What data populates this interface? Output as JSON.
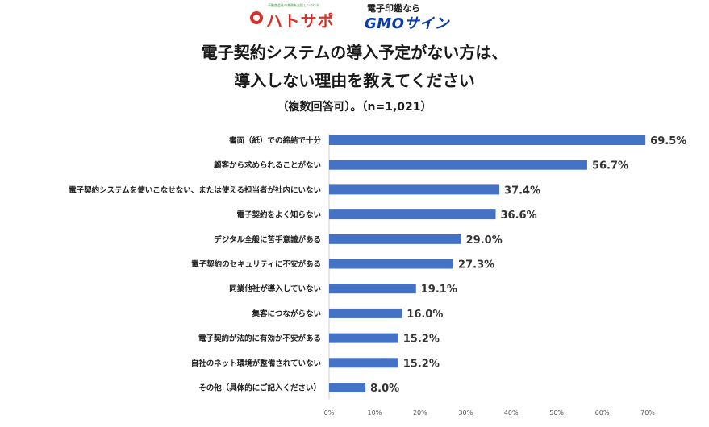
{
  "brands": {
    "hatosapo_tagline": "不動産会社の業務を支援しつづける",
    "hatosapo": "ハトサポ",
    "gmo_top": "電子印鑑なら",
    "gmo_logo": "GMOサイン",
    "hatosapo_color": "#d9302a",
    "gmo_color": "#0b3ea8"
  },
  "chart_data": {
    "type": "bar",
    "orientation": "horizontal",
    "title_line1": "電子契約システムの導入予定がない方は、",
    "title_line2": "導入しない理由を教えてください",
    "subtitle": "（複数回答可）。（n=1,021）",
    "categories": [
      "書面（紙）での締結で十分",
      "顧客から求められることがない",
      "電子契約システムを使いこなせない、または使える担当者が社内にいない",
      "電子契約をよく知らない",
      "デジタル全般に苦手意識がある",
      "電子契約のセキュリティに不安がある",
      "同業他社が導入していない",
      "集客につながらない",
      "電子契約が法的に有効か不安がある",
      "自社のネット環境が整備されていない",
      "その他（具体的にご記入ください）"
    ],
    "values": [
      69.5,
      56.7,
      37.4,
      36.6,
      29.0,
      27.3,
      19.1,
      16.0,
      15.2,
      15.2,
      8.0
    ],
    "value_labels": [
      "69.5%",
      "56.7%",
      "37.4%",
      "36.6%",
      "29.0%",
      "27.3%",
      "19.1%",
      "16.0%",
      "15.2%",
      "15.2%",
      "8.0%"
    ],
    "xlim": [
      0,
      70
    ],
    "xticks": [
      "0%",
      "10%",
      "20%",
      "30%",
      "40%",
      "50%",
      "60%",
      "70%"
    ],
    "bar_color": "#4472c4",
    "grid": false
  }
}
